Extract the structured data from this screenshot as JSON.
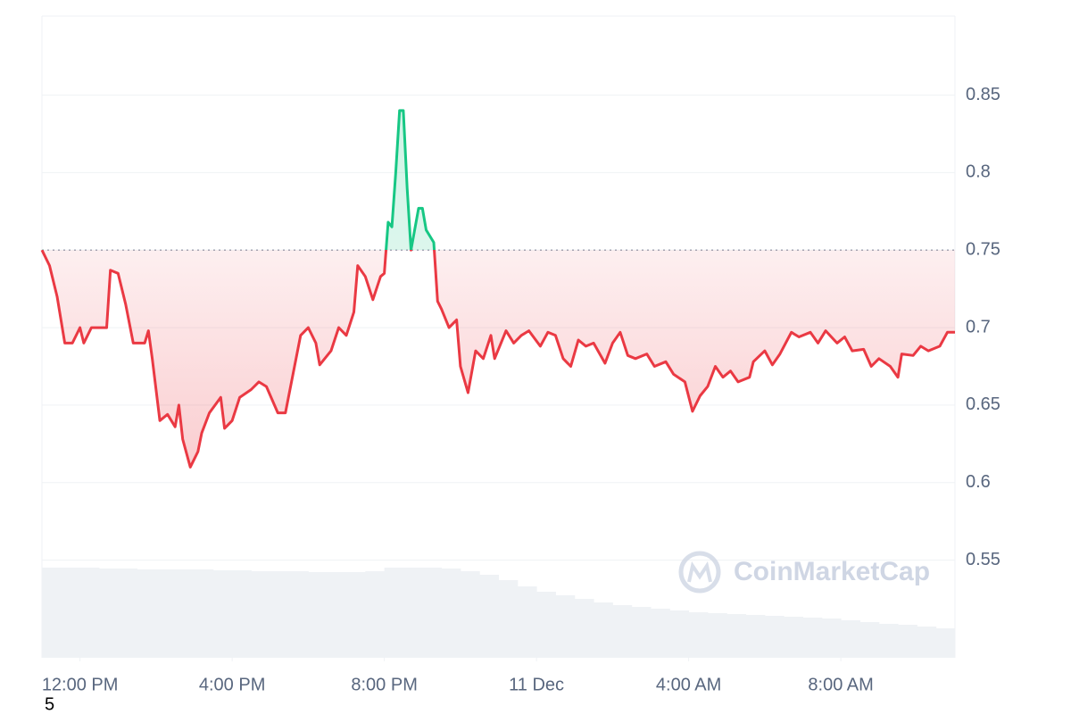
{
  "chart_data": {
    "type": "line",
    "watermark": "CoinMarketCap",
    "footnote": "5",
    "baseline": 0.75,
    "up_color": "#16c784",
    "down_color": "#ea3943",
    "xlim": [
      0,
      24
    ],
    "xticks": [
      {
        "value": 1,
        "label": "12:00 PM"
      },
      {
        "value": 5,
        "label": "4:00 PM"
      },
      {
        "value": 9,
        "label": "8:00 PM"
      },
      {
        "value": 13,
        "label": "11 Dec"
      },
      {
        "value": 17,
        "label": "4:00 AM"
      },
      {
        "value": 21,
        "label": "8:00 AM"
      }
    ],
    "ylim": [
      0.487,
      0.901
    ],
    "yticks": [
      0.55,
      0.6,
      0.65,
      0.7,
      0.75,
      0.8,
      0.85
    ],
    "grid": true,
    "x": [
      0,
      0.2,
      0.4,
      0.6,
      0.8,
      1.0,
      1.1,
      1.3,
      1.7,
      1.8,
      2.0,
      2.2,
      2.4,
      2.7,
      2.8,
      2.9,
      3.1,
      3.3,
      3.5,
      3.6,
      3.7,
      3.9,
      4.1,
      4.2,
      4.4,
      4.7,
      4.8,
      5.0,
      5.2,
      5.5,
      5.7,
      5.9,
      6.2,
      6.4,
      6.6,
      6.8,
      7.0,
      7.2,
      7.3,
      7.6,
      7.8,
      8.0,
      8.2,
      8.3,
      8.5,
      8.7,
      8.9,
      9.0,
      9.1,
      9.2,
      9.3,
      9.4,
      9.5,
      9.6,
      9.7,
      9.9,
      10.0,
      10.1,
      10.3,
      10.4,
      10.5,
      10.7,
      10.9,
      11.0,
      11.2,
      11.4,
      11.6,
      11.8,
      11.9,
      12.2,
      12.4,
      12.6,
      12.8,
      13.1,
      13.3,
      13.5,
      13.7,
      13.9,
      14.1,
      14.3,
      14.5,
      14.8,
      15.0,
      15.2,
      15.4,
      15.6,
      15.9,
      16.1,
      16.4,
      16.6,
      16.9,
      17.1,
      17.3,
      17.5,
      17.7,
      17.9,
      18.1,
      18.3,
      18.6,
      18.7,
      19.0,
      19.2,
      19.4,
      19.7,
      19.9,
      20.2,
      20.4,
      20.6,
      20.9,
      21.1,
      21.3,
      21.6,
      21.8,
      22.0,
      22.3,
      22.5,
      22.6,
      22.9,
      23.1,
      23.3,
      23.6,
      23.8,
      24.0
    ],
    "series": [
      {
        "values": [
          0.75,
          0.74,
          0.72,
          0.69,
          0.69,
          0.7,
          0.69,
          0.7,
          0.7,
          0.737,
          0.735,
          0.715,
          0.69,
          0.69,
          0.698,
          0.68,
          0.64,
          0.644,
          0.636,
          0.65,
          0.628,
          0.61,
          0.62,
          0.632,
          0.645,
          0.655,
          0.635,
          0.64,
          0.655,
          0.66,
          0.665,
          0.662,
          0.645,
          0.645,
          0.67,
          0.695,
          0.7,
          0.69,
          0.676,
          0.685,
          0.7,
          0.695,
          0.71,
          0.74,
          0.733,
          0.718,
          0.733,
          0.735,
          0.768,
          0.765,
          0.8,
          0.84,
          0.84,
          0.79,
          0.75,
          0.777,
          0.777,
          0.763,
          0.755,
          0.717,
          0.712,
          0.7,
          0.705,
          0.675,
          0.658,
          0.685,
          0.68,
          0.695,
          0.68,
          0.698,
          0.69,
          0.695,
          0.698,
          0.688,
          0.697,
          0.695,
          0.68,
          0.675,
          0.692,
          0.688,
          0.69,
          0.677,
          0.69,
          0.697,
          0.682,
          0.68,
          0.683,
          0.675,
          0.678,
          0.67,
          0.665,
          0.646,
          0.656,
          0.662,
          0.675,
          0.668,
          0.672,
          0.665,
          0.668,
          0.678,
          0.685,
          0.676,
          0.683,
          0.697,
          0.694,
          0.697,
          0.69,
          0.698,
          0.69,
          0.694,
          0.685,
          0.686,
          0.675,
          0.68,
          0.675,
          0.668,
          0.683,
          0.682,
          0.688,
          0.685,
          0.688,
          0.697,
          0.697
        ]
      }
    ],
    "volume": {
      "color": "#eff2f5",
      "values": [
        101,
        101,
        101,
        100,
        100,
        99,
        99,
        99,
        99,
        98,
        98,
        97,
        97,
        97,
        96,
        96,
        96,
        97,
        101,
        101,
        101,
        100,
        97,
        93,
        87,
        80,
        74,
        70,
        66,
        62,
        59,
        57,
        55,
        53,
        51,
        50,
        49,
        48,
        47,
        46,
        45,
        44,
        42,
        40,
        38,
        37,
        35,
        33
      ]
    }
  }
}
